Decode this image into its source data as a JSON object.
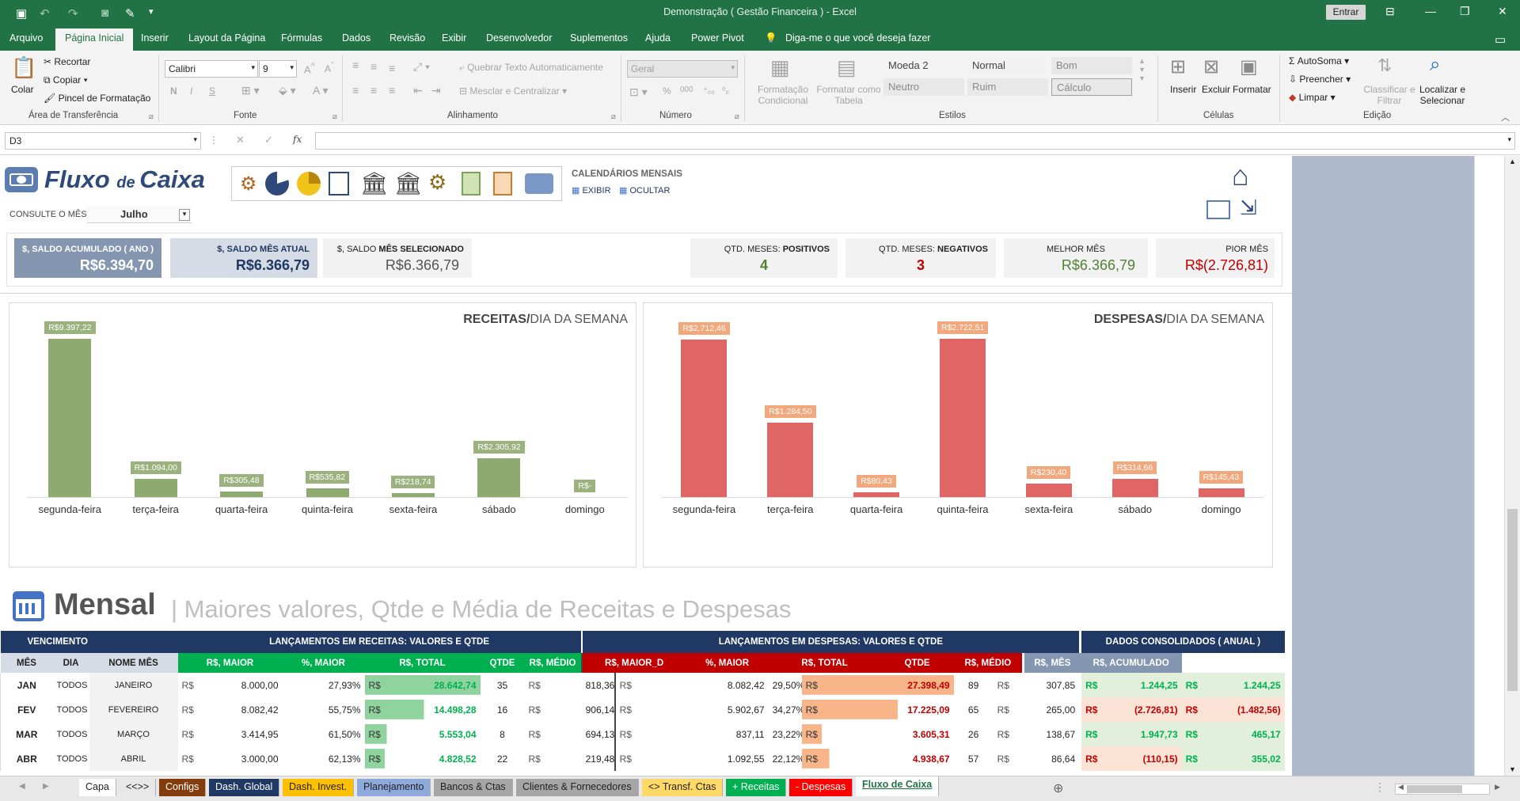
{
  "window": {
    "title": "Demonstração ( Gestão Financeira )  -  Excel",
    "signin": "Entrar"
  },
  "menu": [
    "Arquivo",
    "Página Inicial",
    "Inserir",
    "Layout da Página",
    "Fórmulas",
    "Dados",
    "Revisão",
    "Exibir",
    "Desenvolvedor",
    "Suplementos",
    "Ajuda",
    "Power Pivot",
    "Diga-me o que você deseja fazer"
  ],
  "ribbon": {
    "clipboard": {
      "paste": "Colar",
      "cut": "Recortar",
      "copy": "Copiar",
      "format_painter": "Pincel de Formatação",
      "label": "Área de Transferência"
    },
    "font": {
      "name": "Calibri",
      "size": "9",
      "label": "Fonte",
      "bold": "N",
      "italic": "I",
      "underline": "S"
    },
    "alignment": {
      "wrap": "Quebrar Texto Automaticamente",
      "merge": "Mesclar e Centralizar",
      "label": "Alinhamento"
    },
    "number": {
      "format": "Geral",
      "label": "Número",
      "percent": "%",
      "thousands": "000"
    },
    "styles": {
      "cond": "Formatação Condicional",
      "table": "Formatar como Tabela",
      "cells": [
        "Moeda 2",
        "Normal",
        "Bom",
        "Neutro",
        "Ruim",
        "Cálculo"
      ],
      "label": "Estilos"
    },
    "cells": {
      "insert": "Inserir",
      "delete": "Excluir",
      "format": "Formatar",
      "label": "Células"
    },
    "editing": {
      "autosum": "AutoSoma",
      "fill": "Preencher",
      "clear": "Limpar",
      "sort": "Classificar e Filtrar",
      "find": "Localizar e Selecionar",
      "label": "Edição"
    }
  },
  "formula_bar": {
    "name_box": "D3",
    "fx": "fx",
    "value": ""
  },
  "dashboard": {
    "title_a": "Fluxo ",
    "title_b": "de ",
    "title_c": "Caixa",
    "calendars_label": "CALENDÁRIOS MENSAIS",
    "show": "EXIBIR",
    "hide": "OCULTAR",
    "month_query_label": "CONSULTE O MÊS",
    "month": "Julho",
    "kpis": {
      "saldo_ano": {
        "label": "$, SALDO ACUMULADO ( ANO )",
        "value": "R$6.394,70"
      },
      "saldo_mes_atual": {
        "label": "$, SALDO MÊS ATUAL",
        "value": "R$6.366,79"
      },
      "saldo_mes_sel": {
        "label_a": "$, SALDO ",
        "label_b": "MÊS SELECIONADO",
        "value": "R$6.366,79"
      },
      "positivos": {
        "label_a": "QTD. MESES: ",
        "label_b": "POSITIVOS",
        "value": "4"
      },
      "negativos": {
        "label_a": "QTD. MESES: ",
        "label_b": "NEGATIVOS",
        "value": "3"
      },
      "melhor": {
        "label": "MELHOR MÊS",
        "value": "R$6.366,79"
      },
      "pior": {
        "label": "PIOR MÊS",
        "value": "R$(2.726,81)"
      }
    }
  },
  "chart_data": [
    {
      "type": "bar",
      "title": "RECEITAS/DIA DA SEMANA",
      "title_a": "RECEITAS/",
      "title_b": "DIA DA SEMANA",
      "categories": [
        "segunda-feira",
        "terça-feira",
        "quarta-feira",
        "quinta-feira",
        "sexta-feira",
        "sábado",
        "domingo"
      ],
      "values": [
        9397.22,
        1094.0,
        305.48,
        535.82,
        218.74,
        2305.92,
        0
      ],
      "labels": [
        "R$9.397,22",
        "R$1.094,00",
        "R$305,48",
        "R$535,82",
        "R$218,74",
        "R$2.305,92",
        "R$-"
      ],
      "color": "#8faa6e",
      "max": 9397.22
    },
    {
      "type": "bar",
      "title": "DESPESAS/DIA DA SEMANA",
      "title_a": "DESPESAS/",
      "title_b": "DIA DA SEMANA",
      "categories": [
        "segunda-feira",
        "terça-feira",
        "quarta-feira",
        "quinta-feira",
        "sexta-feira",
        "sábado",
        "domingo"
      ],
      "values": [
        2712.46,
        1284.5,
        80.43,
        2722.51,
        230.4,
        314.66,
        145.43
      ],
      "labels": [
        "R$2.712,46",
        "R$1.284,50",
        "R$80,43",
        "R$2.722,51",
        "R$230,40",
        "R$314,66",
        "R$145,43"
      ],
      "color": "#e06666",
      "max": 2722.51
    }
  ],
  "section": {
    "title": "Mensal",
    "subtitle": "| Maiores valores, Qtde e Média de Receitas e Despesas"
  },
  "table": {
    "group_headers": [
      "VENCIMENTO",
      "LANÇAMENTOS EM RECEITAS: VALORES E QTDE",
      "LANÇAMENTOS EM DESPESAS: VALORES E QTDE",
      "DADOS CONSOLIDADOS ( ANUAL )"
    ],
    "columns": [
      "MÊS",
      "DIA",
      "NOME MÊS",
      "R$, MAIOR",
      "%, MAIOR",
      "R$, TOTAL",
      "QTDE",
      "R$, MÉDIO",
      "R$, MAIOR_D",
      "%, MAIOR",
      "R$, TOTAL",
      "QTDE",
      "R$, MÉDIO",
      "R$, MÊS",
      "R$, ACUMULADO"
    ],
    "rows": [
      {
        "mes": "JAN",
        "dia": "TODOS",
        "nome": "JANEIRO",
        "r_maior": "8.000,00",
        "r_pct": "27,93%",
        "r_total": "28.642,74",
        "r_total_frac": 1.0,
        "r_qtde": "35",
        "r_medio": "818,36",
        "d_maior": "8.082,42",
        "d_pct": "29,50%",
        "d_total": "27.398,49",
        "d_total_frac": 1.0,
        "d_qtde": "89",
        "d_medio": "307,85",
        "mes_val": "1.244,25",
        "mes_neg": false,
        "acum": "1.244,25",
        "acum_neg": false
      },
      {
        "mes": "FEV",
        "dia": "TODOS",
        "nome": "FEVEREIRO",
        "r_maior": "8.082,42",
        "r_pct": "55,75%",
        "r_total": "14.498,28",
        "r_total_frac": 0.51,
        "r_qtde": "16",
        "r_medio": "906,14",
        "d_maior": "5.902,67",
        "d_pct": "34,27%",
        "d_total": "17.225,09",
        "d_total_frac": 0.63,
        "d_qtde": "65",
        "d_medio": "265,00",
        "mes_val": "(2.726,81)",
        "mes_neg": true,
        "acum": "(1.482,56)",
        "acum_neg": true
      },
      {
        "mes": "MAR",
        "dia": "TODOS",
        "nome": "MARÇO",
        "r_maior": "3.414,95",
        "r_pct": "61,50%",
        "r_total": "5.553,04",
        "r_total_frac": 0.19,
        "r_qtde": "8",
        "r_medio": "694,13",
        "d_maior": "837,11",
        "d_pct": "23,22%",
        "d_total": "3.605,31",
        "d_total_frac": 0.13,
        "d_qtde": "26",
        "d_medio": "138,67",
        "mes_val": "1.947,73",
        "mes_neg": false,
        "acum": "465,17",
        "acum_neg": false
      },
      {
        "mes": "ABR",
        "dia": "TODOS",
        "nome": "ABRIL",
        "r_maior": "3.000,00",
        "r_pct": "62,13%",
        "r_total": "4.828,52",
        "r_total_frac": 0.17,
        "r_qtde": "22",
        "r_medio": "219,48",
        "d_maior": "1.092,55",
        "d_pct": "22,12%",
        "d_total": "4.938,67",
        "d_total_frac": 0.18,
        "d_qtde": "57",
        "d_medio": "86,64",
        "mes_val": "(110,15)",
        "mes_neg": true,
        "acum": "355,02",
        "acum_neg": false
      }
    ],
    "currency": "R$"
  },
  "sheet_tabs": [
    {
      "label": "Capa",
      "bg": "#ffffff",
      "fg": "#222"
    },
    {
      "label": "<<>>",
      "bg": "#e8e8e8",
      "fg": "#222"
    },
    {
      "label": "Configs",
      "bg": "#843c0c",
      "fg": "#ffffff"
    },
    {
      "label": "Dash. Global",
      "bg": "#1f3864",
      "fg": "#ffffff"
    },
    {
      "label": "Dash. Invest.",
      "bg": "#ffc000",
      "fg": "#222"
    },
    {
      "label": "Planejamento",
      "bg": "#8ea9db",
      "fg": "#222"
    },
    {
      "label": "Bancos & Ctas",
      "bg": "#a6a6a6",
      "fg": "#222"
    },
    {
      "label": "Clientes & Fornecedores",
      "bg": "#a6a6a6",
      "fg": "#222"
    },
    {
      "label": "<> Transf. Ctas",
      "bg": "#ffd966",
      "fg": "#222"
    },
    {
      "label": "+ Receitas",
      "bg": "#00b050",
      "fg": "#ffffff"
    },
    {
      "label": "- Despesas",
      "bg": "#ff0000",
      "fg": "#ffffff"
    },
    {
      "label": "Fluxo de Caixa",
      "bg": "#ffffff",
      "fg": "#217346"
    }
  ]
}
